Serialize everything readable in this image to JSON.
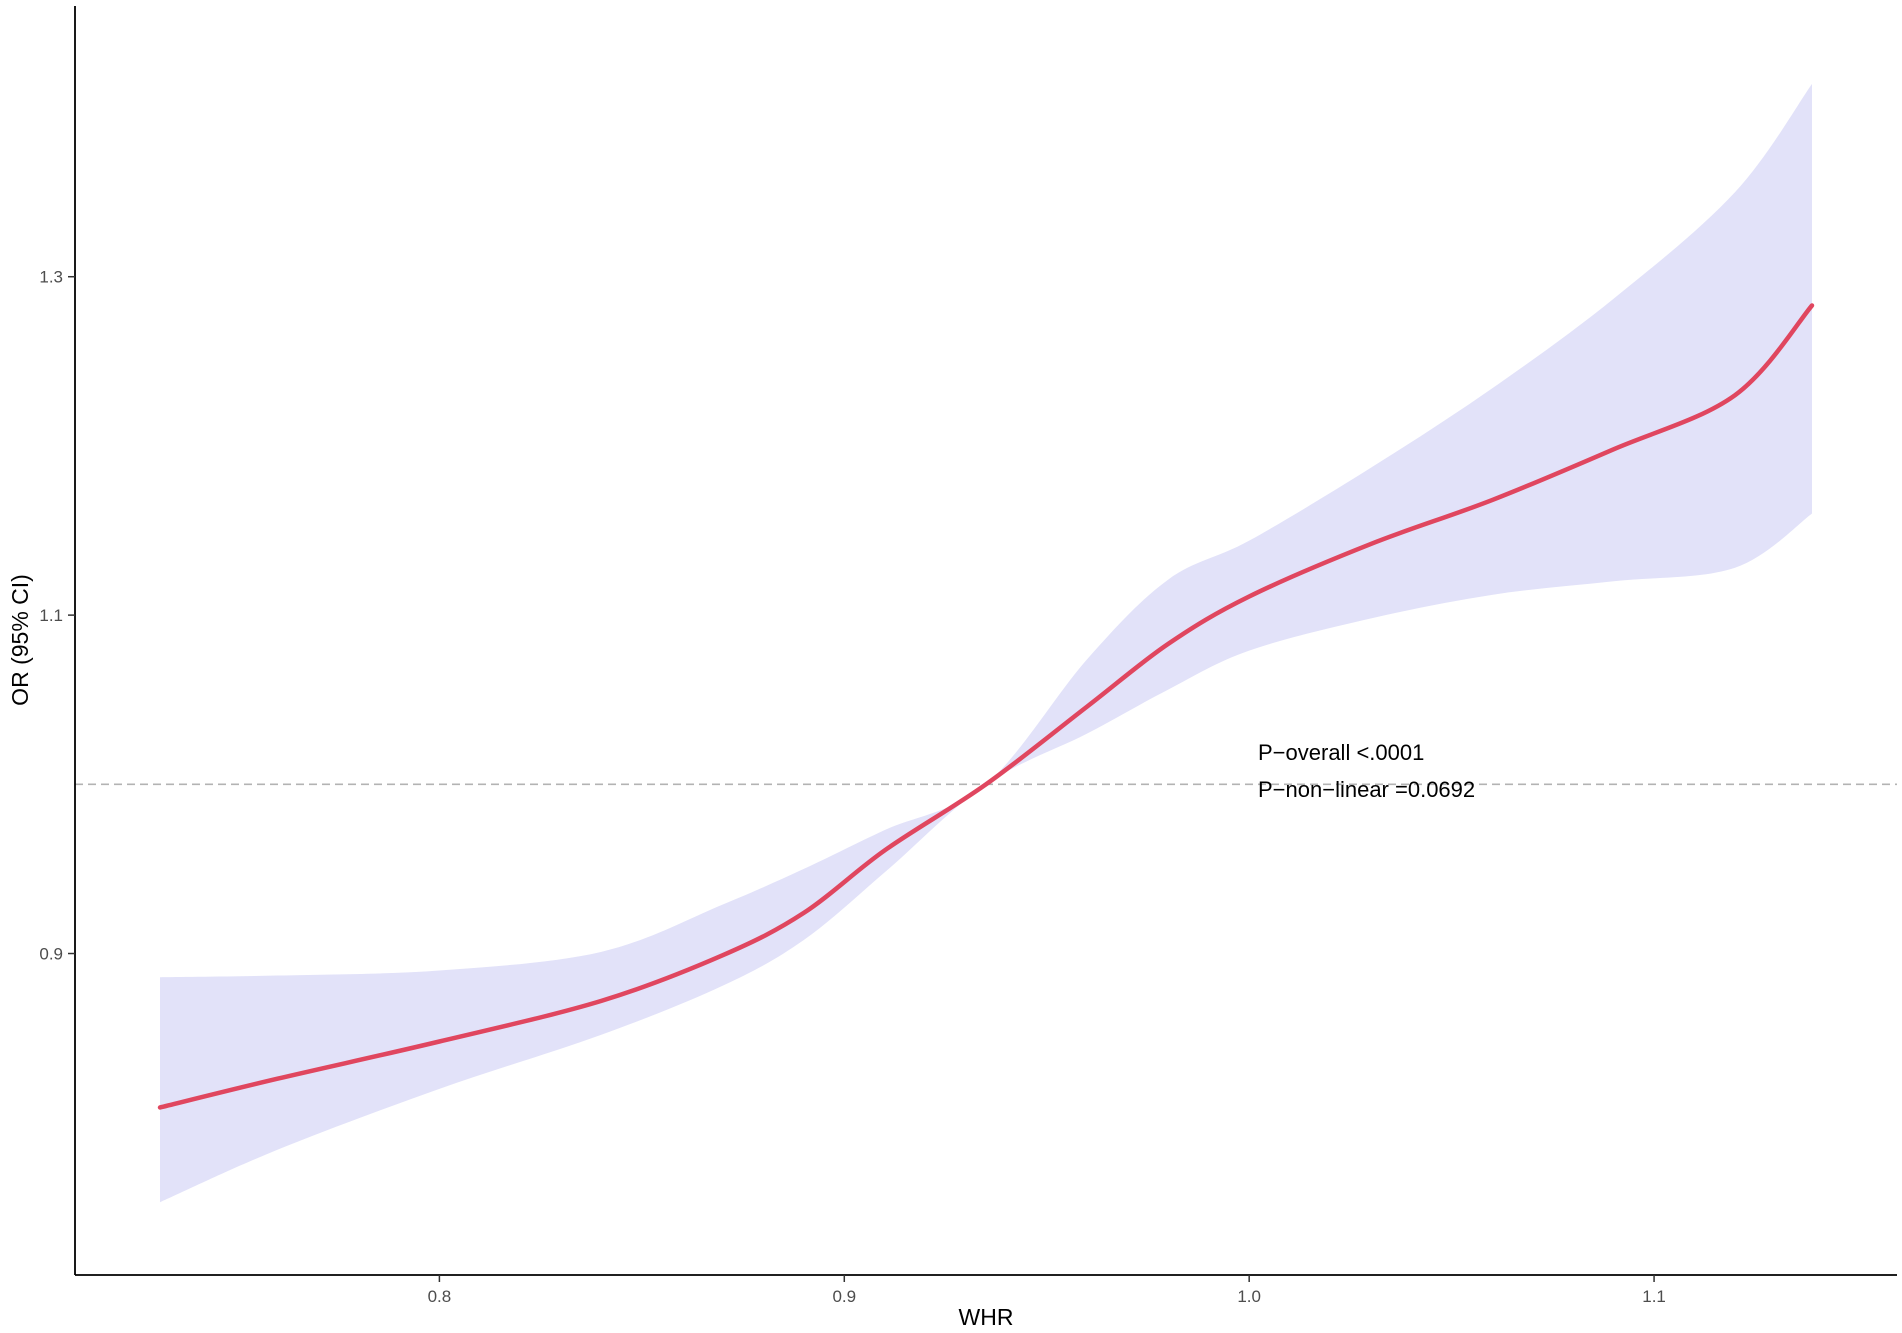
{
  "chart_data": {
    "type": "line",
    "xlabel": "WHR",
    "ylabel": "OR (95% CI)",
    "xlim": [
      0.71,
      1.16
    ],
    "ylim": [
      0.71,
      1.46
    ],
    "x_ticks": [
      "0.8",
      "0.9",
      "1.0",
      "1.1"
    ],
    "y_ticks": [
      "0.9",
      "1.1",
      "1.3"
    ],
    "reference_line": {
      "y": 1.0,
      "style": "dashed"
    },
    "grid": false,
    "annotations": [
      "P−overall <.0001",
      "P−non−linear =0.0692"
    ],
    "series": [
      {
        "x": [
          0.731,
          0.76,
          0.8,
          0.84,
          0.87,
          0.89,
          0.91,
          0.935,
          0.96,
          0.98,
          1.0,
          1.03,
          1.06,
          1.09,
          1.12,
          1.139
        ],
        "y": [
          0.809,
          0.826,
          0.848,
          0.872,
          0.899,
          0.924,
          0.961,
          1.0,
          1.046,
          1.083,
          1.111,
          1.142,
          1.168,
          1.198,
          1.23,
          1.283
        ],
        "lower": [
          0.753,
          0.784,
          0.82,
          0.852,
          0.881,
          0.908,
          0.948,
          1.0,
          1.03,
          1.056,
          1.079,
          1.098,
          1.112,
          1.12,
          1.128,
          1.16
        ],
        "upper": [
          0.886,
          0.887,
          0.89,
          0.901,
          0.929,
          0.95,
          0.973,
          1.0,
          1.074,
          1.121,
          1.144,
          1.187,
          1.234,
          1.287,
          1.35,
          1.414
        ],
        "color": "#e0465f",
        "ci_color": "#e2e2f9"
      }
    ]
  }
}
